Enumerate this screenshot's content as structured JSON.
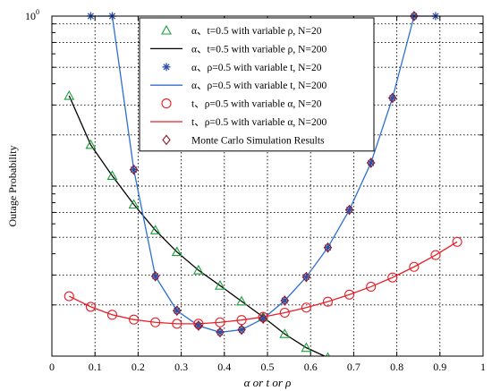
{
  "chart_data": {
    "type": "line",
    "title": "",
    "xlabel": "α or t or ρ",
    "ylabel": "Outage Probability",
    "xlim": [
      0,
      1
    ],
    "ylim_log10": [
      -2.0,
      0
    ],
    "y_scale": "log",
    "grid": true,
    "legend_placement": "top-center",
    "x_ticks": [
      "0",
      "0.1",
      "0.2",
      "0.3",
      "0.4",
      "0.5",
      "0.6",
      "0.7",
      "0.8",
      "0.9",
      "1"
    ],
    "y_tick_label": {
      "base": "10",
      "exp": "0"
    },
    "series": [
      {
        "id": "s1",
        "name": "α、t=0.5 with variable ρ, N=20",
        "style": "marker",
        "marker": "triangle",
        "color": "#1a9e3a",
        "x": [
          0.04,
          0.09,
          0.14,
          0.19,
          0.24,
          0.29,
          0.34,
          0.39,
          0.44,
          0.49,
          0.54,
          0.59,
          0.64,
          0.69,
          0.74,
          0.79,
          0.84,
          0.89,
          0.94
        ],
        "y": [
          0.34,
          0.175,
          0.115,
          0.078,
          0.055,
          0.041,
          0.032,
          0.026,
          0.021,
          0.017,
          0.0135,
          0.0112,
          0.0098,
          0.0088,
          0.0079,
          0.0072,
          0.0067,
          0.0064,
          0.0071
        ]
      },
      {
        "id": "s2",
        "name": "α、t=0.5 with variable ρ, N=200",
        "style": "line",
        "color": "#000000",
        "x": [
          0.04,
          0.09,
          0.14,
          0.19,
          0.24,
          0.29,
          0.34,
          0.39,
          0.44,
          0.49,
          0.54,
          0.59,
          0.64,
          0.69,
          0.74,
          0.79,
          0.84,
          0.89,
          0.94
        ],
        "y": [
          0.34,
          0.175,
          0.115,
          0.078,
          0.055,
          0.041,
          0.032,
          0.026,
          0.021,
          0.017,
          0.0135,
          0.0112,
          0.0098,
          0.0088,
          0.0079,
          0.0072,
          0.0067,
          0.0064,
          0.0071
        ]
      },
      {
        "id": "s3",
        "name": "α、ρ=0.5 with variable t, N=20",
        "style": "marker",
        "marker": "star",
        "color": "#2b4fa8",
        "x": [
          0.09,
          0.14,
          0.19,
          0.24,
          0.29,
          0.34,
          0.39,
          0.44,
          0.49,
          0.54,
          0.59,
          0.64,
          0.69,
          0.74,
          0.79,
          0.84,
          0.89
        ],
        "y": [
          1.0,
          1.0,
          0.125,
          0.0295,
          0.0185,
          0.0151,
          0.0138,
          0.0143,
          0.0166,
          0.0212,
          0.0292,
          0.0435,
          0.0725,
          0.137,
          0.33,
          1.0,
          1.0
        ]
      },
      {
        "id": "s4",
        "name": "α、ρ=0.5 with variable t, N=200",
        "style": "line",
        "color": "#2e6fd0",
        "x": [
          0.09,
          0.14,
          0.19,
          0.24,
          0.29,
          0.34,
          0.39,
          0.44,
          0.49,
          0.54,
          0.59,
          0.64,
          0.69,
          0.74,
          0.79,
          0.84,
          0.89
        ],
        "y": [
          1.0,
          1.0,
          0.125,
          0.0295,
          0.0185,
          0.0151,
          0.0138,
          0.0143,
          0.0166,
          0.0212,
          0.0292,
          0.0435,
          0.0725,
          0.137,
          0.33,
          1.0,
          1.0
        ]
      },
      {
        "id": "s5",
        "name": "t、ρ=0.5 with variable α, N=20",
        "style": "marker",
        "marker": "circle",
        "color": "#e8202a",
        "x": [
          0.04,
          0.09,
          0.14,
          0.19,
          0.24,
          0.29,
          0.34,
          0.39,
          0.44,
          0.49,
          0.54,
          0.59,
          0.64,
          0.69,
          0.74,
          0.79,
          0.84,
          0.89,
          0.94
        ],
        "y": [
          0.0225,
          0.0195,
          0.0175,
          0.0164,
          0.0158,
          0.0155,
          0.0155,
          0.0158,
          0.0163,
          0.017,
          0.018,
          0.0193,
          0.0209,
          0.023,
          0.0256,
          0.029,
          0.0335,
          0.0393,
          0.047
        ]
      },
      {
        "id": "s6",
        "name": "t、ρ=0.5 with variable α, N=200",
        "style": "line",
        "color": "#e8202a",
        "x": [
          0.04,
          0.09,
          0.14,
          0.19,
          0.24,
          0.29,
          0.34,
          0.39,
          0.44,
          0.49,
          0.54,
          0.59,
          0.64,
          0.69,
          0.74,
          0.79,
          0.84,
          0.89,
          0.94
        ],
        "y": [
          0.0225,
          0.0195,
          0.0175,
          0.0164,
          0.0158,
          0.0155,
          0.0155,
          0.0158,
          0.0163,
          0.017,
          0.018,
          0.0193,
          0.0209,
          0.023,
          0.0256,
          0.029,
          0.0335,
          0.0393,
          0.047
        ]
      },
      {
        "id": "s7",
        "name": "Monte Carlo Simulation Results",
        "style": "marker",
        "marker": "diamond",
        "color": "#8b1a2a",
        "x": [
          0.19,
          0.24,
          0.29,
          0.34,
          0.39,
          0.44,
          0.49,
          0.54,
          0.59,
          0.64,
          0.69,
          0.74,
          0.79,
          0.84
        ],
        "y": [
          0.125,
          0.0295,
          0.0185,
          0.0151,
          0.0138,
          0.0143,
          0.0166,
          0.0212,
          0.0292,
          0.0435,
          0.0725,
          0.137,
          0.33,
          1.0
        ]
      }
    ]
  }
}
